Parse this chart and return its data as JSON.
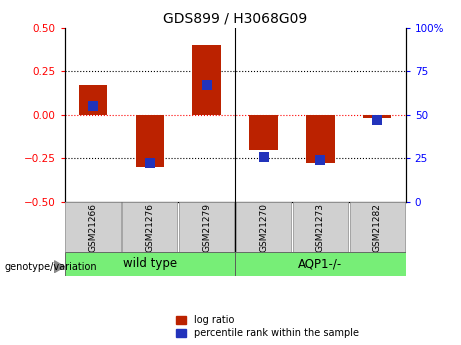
{
  "title": "GDS899 / H3068G09",
  "samples": [
    "GSM21266",
    "GSM21276",
    "GSM21279",
    "GSM21270",
    "GSM21273",
    "GSM21282"
  ],
  "log_ratios": [
    0.17,
    -0.3,
    0.4,
    -0.2,
    -0.28,
    -0.02
  ],
  "percentile_ranks": [
    55,
    22,
    67,
    26,
    24,
    47
  ],
  "group_boundary": 2.5,
  "ylim_left": [
    -0.5,
    0.5
  ],
  "ylim_right": [
    0,
    100
  ],
  "yticks_left": [
    -0.5,
    -0.25,
    0,
    0.25,
    0.5
  ],
  "yticks_right": [
    0,
    25,
    50,
    75,
    100
  ],
  "ytick_labels_right": [
    "0",
    "25",
    "50",
    "75",
    "100%"
  ],
  "hline_dotted": [
    -0.25,
    0.25
  ],
  "hline_red_dashed": 0,
  "bar_color": "#bb2200",
  "dot_color": "#2233bb",
  "bar_width": 0.5,
  "dot_size": 55,
  "bg_color": "#ffffff",
  "plot_bg": "#ffffff",
  "legend_red_label": "log ratio",
  "legend_blue_label": "percentile rank within the sample",
  "genotype_label": "genotype/variation",
  "group1_label": "wild type",
  "group2_label": "AQP1-/-",
  "tick_label_bg": "#cccccc",
  "group_label_bg": "#77ee77"
}
